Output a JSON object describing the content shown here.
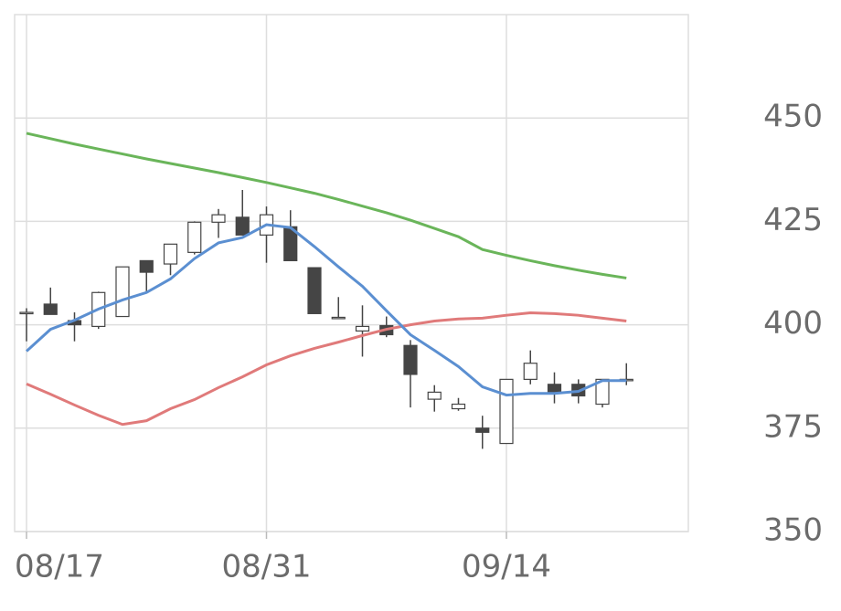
{
  "chart_data": {
    "type": "candlestick",
    "categories": [
      "08/17",
      null,
      null,
      null,
      null,
      null,
      null,
      null,
      null,
      null,
      "08/31",
      null,
      null,
      null,
      null,
      null,
      null,
      null,
      null,
      null,
      "09/14",
      null,
      null,
      null,
      null,
      null
    ],
    "open": [
      403,
      405,
      401,
      399.6,
      402,
      415.5,
      414.7,
      417.5,
      424.8,
      426,
      421.7,
      423.7,
      413.8,
      401.8,
      398.5,
      399.8,
      395,
      382,
      379.7,
      375,
      371.3,
      386.8,
      385.6,
      385.6,
      380.8,
      386.8
    ],
    "high": [
      404,
      409,
      403,
      408,
      414,
      415.5,
      419.5,
      425,
      428,
      432.6,
      428.6,
      427.7,
      413.8,
      406.7,
      404.7,
      402,
      396.3,
      385.4,
      382.3,
      378,
      386.8,
      393.8,
      388.5,
      386.8,
      386.8,
      390.7
    ],
    "low": [
      396,
      402.5,
      396,
      399,
      402,
      408,
      412,
      417,
      421,
      421.7,
      415,
      415.5,
      402.7,
      401.4,
      392.3,
      397,
      380,
      379,
      379.2,
      370,
      371.3,
      385.6,
      381,
      381,
      380,
      385.4
    ],
    "close": [
      403,
      402.5,
      400,
      407.8,
      414,
      412.7,
      419.5,
      424.8,
      426.6,
      421.7,
      426.6,
      415.5,
      402.7,
      401.8,
      399.6,
      397.6,
      388,
      383.7,
      380.8,
      374,
      386.8,
      390.7,
      383.4,
      382.8,
      386.8,
      386.8
    ],
    "up_color": "#ffffff",
    "down_color": "#454545",
    "lines": [
      {
        "color": "#6ab55a",
        "values": [
          446.3,
          445,
          443.7,
          442.5,
          441.3,
          440.1,
          439,
          437.9,
          436.8,
          435.6,
          434.4,
          433.1,
          431.8,
          430.3,
          428.7,
          427.1,
          425.3,
          423.3,
          421.3,
          418.2,
          416.8,
          415.5,
          414.3,
          413.2,
          412.2,
          411.3
        ]
      },
      {
        "color": "#e07a7a",
        "values": [
          385.7,
          383.2,
          380.6,
          378.1,
          375.9,
          376.8,
          379.7,
          381.9,
          384.8,
          387.4,
          390.3,
          392.5,
          394.3,
          395.8,
          397.4,
          398.9,
          400,
          400.9,
          401.4,
          401.6,
          402.3,
          402.9,
          402.7,
          402.3,
          401.6,
          400.9
        ]
      },
      {
        "color": "#5b8fd1",
        "values": [
          393.6,
          398.9,
          401.1,
          403.8,
          406,
          407.8,
          411.1,
          416,
          419.8,
          421.1,
          424.2,
          423.5,
          418.9,
          414,
          409.3,
          403.4,
          397.6,
          393.8,
          389.9,
          385,
          383,
          383.4,
          383.4,
          383.9,
          386.5,
          386.5
        ]
      }
    ],
    "ylim": [
      350,
      475
    ],
    "yticks": [
      350,
      375,
      400,
      425,
      450
    ],
    "grid": true
  }
}
